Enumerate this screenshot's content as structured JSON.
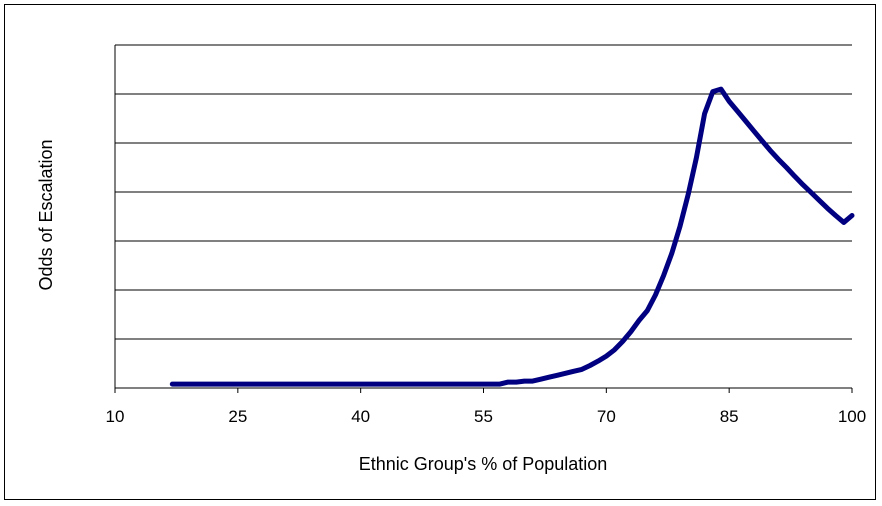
{
  "chart_data": {
    "type": "line",
    "xlabel": "Ethnic Group's % of Population",
    "ylabel": "Odds of Escalation",
    "xlim": [
      10,
      100
    ],
    "ylim": [
      0,
      7
    ],
    "x_ticks": [
      10,
      25,
      40,
      55,
      70,
      85,
      100
    ],
    "y_gridlines": [
      1,
      2,
      3,
      4,
      5,
      6,
      7
    ],
    "y_tick_labels_shown": false,
    "grid": true,
    "legend": "none",
    "series": [
      {
        "color": "#000080",
        "x": [
          17,
          20,
          25,
          30,
          35,
          40,
          45,
          50,
          55,
          57,
          58,
          59,
          60,
          61,
          62,
          63,
          64,
          65,
          66,
          67,
          68,
          69,
          70,
          71,
          72,
          73,
          74,
          75,
          76,
          77,
          78,
          79,
          80,
          81,
          82,
          83,
          84,
          85,
          86,
          87,
          88,
          89,
          90,
          91,
          92,
          93,
          94,
          95,
          96,
          97,
          98,
          99,
          100
        ],
        "y": [
          0.08,
          0.08,
          0.08,
          0.08,
          0.08,
          0.08,
          0.08,
          0.08,
          0.08,
          0.08,
          0.12,
          0.12,
          0.14,
          0.14,
          0.18,
          0.22,
          0.26,
          0.3,
          0.34,
          0.38,
          0.46,
          0.55,
          0.65,
          0.78,
          0.95,
          1.15,
          1.38,
          1.58,
          1.9,
          2.3,
          2.75,
          3.3,
          3.95,
          4.7,
          5.6,
          6.05,
          6.1,
          5.85,
          5.65,
          5.45,
          5.25,
          5.05,
          4.85,
          4.67,
          4.5,
          4.32,
          4.15,
          3.99,
          3.83,
          3.67,
          3.52,
          3.38,
          3.52
        ]
      }
    ]
  }
}
